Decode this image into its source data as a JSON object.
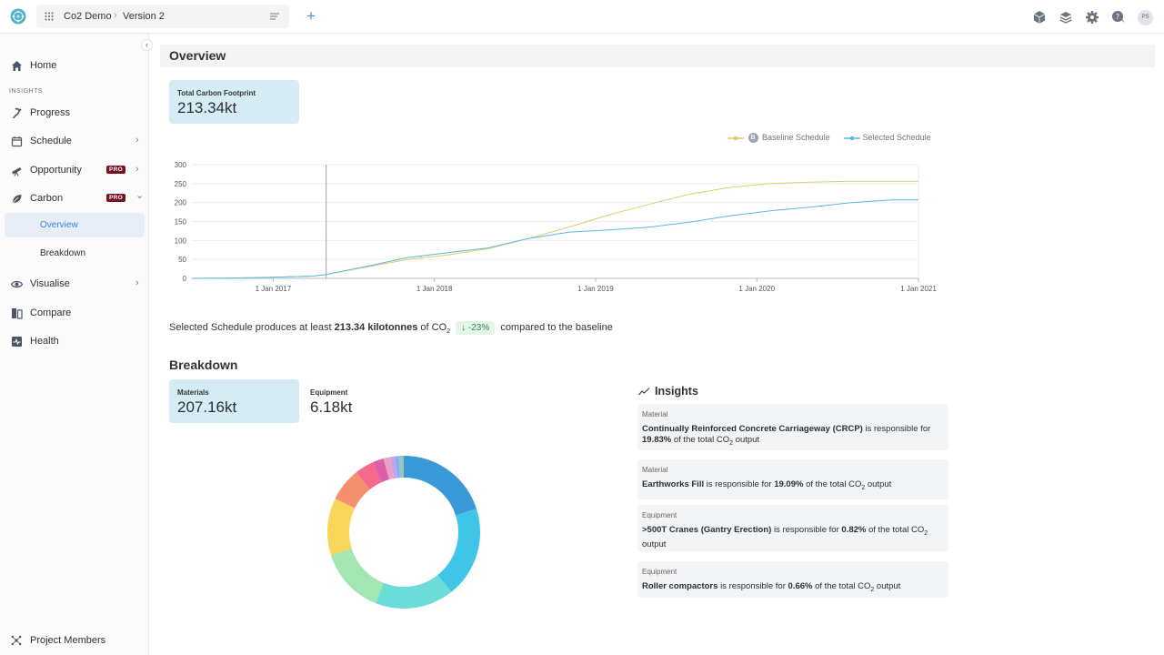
{
  "topbar": {
    "project": "Co2 Demo",
    "separator": "›",
    "version": "Version 2",
    "add_label": "+",
    "avatar_initials": "PS"
  },
  "sidebar": {
    "collapse_glyph": "‹",
    "home": "Home",
    "section_insights": "INSIGHTS",
    "items": [
      {
        "label": "Progress",
        "icon": "progress-icon"
      },
      {
        "label": "Schedule",
        "icon": "calendar-icon",
        "chevron": "›"
      },
      {
        "label": "Opportunity",
        "icon": "telescope-icon",
        "badge": "PRO",
        "chevron": "›"
      },
      {
        "label": "Carbon",
        "icon": "leaf-icon",
        "badge": "PRO",
        "chevron": "⌄"
      }
    ],
    "carbon_sub": [
      "Overview",
      "Breakdown"
    ],
    "items_after": [
      {
        "label": "Visualise",
        "icon": "eye-icon",
        "chevron": "›"
      },
      {
        "label": "Compare",
        "icon": "compare-icon"
      },
      {
        "label": "Health",
        "icon": "health-icon"
      }
    ],
    "project_members": "Project Members"
  },
  "overview": {
    "heading": "Overview",
    "total_card": {
      "title": "Total Carbon Footprint",
      "value": "213.34kt"
    }
  },
  "chart_data": {
    "type": "line",
    "x": [
      "2016-07-01",
      "2016-10-01",
      "2017-01-01",
      "2017-04-01",
      "2017-05-01",
      "2017-08-01",
      "2017-11-01",
      "2018-02-01",
      "2018-05-01",
      "2018-08-01",
      "2018-11-01",
      "2019-02-01",
      "2019-05-01",
      "2019-08-01",
      "2019-11-01",
      "2020-02-01",
      "2020-05-01",
      "2020-08-01",
      "2020-11-01",
      "2021-01-01"
    ],
    "series": [
      {
        "name": "Baseline Schedule",
        "badge": "B",
        "color": "#d9cf6a",
        "values": [
          0,
          1,
          3,
          6,
          10,
          30,
          50,
          62,
          78,
          105,
          135,
          168,
          195,
          222,
          240,
          250,
          254,
          256,
          256,
          256
        ]
      },
      {
        "name": "Selected Schedule",
        "color": "#5bb8e6",
        "values": [
          0,
          1,
          3,
          6,
          10,
          32,
          55,
          68,
          80,
          105,
          122,
          128,
          135,
          148,
          165,
          178,
          188,
          200,
          207,
          207
        ]
      }
    ],
    "x_ticks": [
      "1 Jan 2017",
      "1 Jan 2018",
      "1 Jan 2019",
      "1 Jan 2020",
      "1 Jan 2021"
    ],
    "y_ticks": [
      0,
      50,
      100,
      150,
      200,
      250,
      300
    ],
    "ylim": [
      0,
      300
    ],
    "marker_date": "2017-05-01",
    "grid": true,
    "legend": "top-right"
  },
  "summary": {
    "prefix": "Selected Schedule produces at least",
    "amount": "213.34 kilotonnes",
    "of": "of CO",
    "sub": "2",
    "delta": "-23%",
    "delta_glyph": "↓",
    "suffix": "compared to the baseline"
  },
  "breakdown": {
    "heading": "Breakdown",
    "materials": {
      "title": "Materials",
      "value": "207.16kt"
    },
    "equipment": {
      "title": "Equipment",
      "value": "6.18kt"
    }
  },
  "donut": {
    "segments": [
      {
        "value": 19.83,
        "color": "#3a9ad9"
      },
      {
        "value": 19.09,
        "color": "#3fc6e6"
      },
      {
        "value": 16.5,
        "color": "#6bdcd8"
      },
      {
        "value": 14.0,
        "color": "#a3e6b4"
      },
      {
        "value": 12.0,
        "color": "#f9d55b"
      },
      {
        "value": 7.0,
        "color": "#f5906e"
      },
      {
        "value": 4.0,
        "color": "#f46a8c"
      },
      {
        "value": 2.3,
        "color": "#d95fa8"
      },
      {
        "value": 1.4,
        "color": "#ef9ec8"
      },
      {
        "value": 1.0,
        "color": "#c7a3e8"
      },
      {
        "value": 0.8,
        "color": "#8fa7ff"
      },
      {
        "value": 0.6,
        "color": "#7bd3b8"
      },
      {
        "value": 0.5,
        "color": "#b5b5b5"
      }
    ]
  },
  "insights": {
    "heading": "Insights",
    "cards": [
      {
        "category": "Material",
        "name": "Continually Reinforced Concrete Carriageway (CRCP)",
        "middle": "is responsible for",
        "pct": "19.83%",
        "tail": "of the total CO",
        "sub": "2",
        "end": "output"
      },
      {
        "category": "Material",
        "name": "Earthworks Fill",
        "middle": "is responsible for",
        "pct": "19.09%",
        "tail": "of the total CO",
        "sub": "2",
        "end": "output"
      },
      {
        "category": "Equipment",
        "name": ">500T Cranes (Gantry Erection)",
        "middle": "is responsible for",
        "pct": "0.82%",
        "tail": "of the total CO",
        "sub": "2",
        "end": "output"
      },
      {
        "category": "Equipment",
        "name": "Roller compactors",
        "middle": "is responsible for",
        "pct": "0.66%",
        "tail": "of the total CO",
        "sub": "2",
        "end": "output"
      }
    ]
  }
}
